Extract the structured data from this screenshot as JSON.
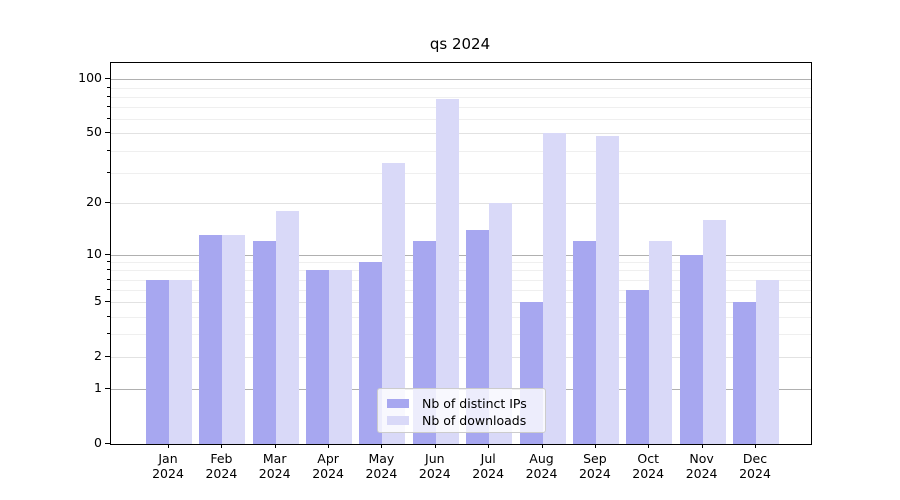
{
  "chart_data": {
    "type": "bar",
    "title": "qs 2024",
    "categories": [
      "Jan",
      "Feb",
      "Mar",
      "Apr",
      "May",
      "Jun",
      "Jul",
      "Aug",
      "Sep",
      "Oct",
      "Nov",
      "Dec"
    ],
    "category_year": "2024",
    "series": [
      {
        "name": "Nb of distinct IPs",
        "color": "#a7a7f0",
        "values": [
          7,
          13,
          12,
          8,
          9,
          12,
          14,
          5,
          12,
          6,
          10,
          5
        ]
      },
      {
        "name": "Nb of downloads",
        "color": "#d9d9f8",
        "values": [
          7,
          13,
          18,
          8,
          34,
          78,
          20,
          50,
          48,
          12,
          16,
          7
        ]
      }
    ],
    "yscale": "log10(value+1)",
    "ylim": [
      0,
      123
    ],
    "yticks": [
      0,
      1,
      2,
      5,
      10,
      20,
      50,
      100
    ],
    "yticks_minor": [
      3,
      4,
      6,
      7,
      8,
      9,
      30,
      40,
      60,
      70,
      80,
      90
    ],
    "grid": true,
    "legend_position": "lower center"
  },
  "colors": {
    "background": "#ffffff",
    "axis_frame": "#000000",
    "grid_major_decade": "#b0b0b0",
    "grid_major": "#e2e2e2",
    "grid_minor": "#efefef",
    "legend_border": "#cccccc",
    "legend_bg": "rgba(255,255,255,0.8)",
    "text": "#000000"
  }
}
